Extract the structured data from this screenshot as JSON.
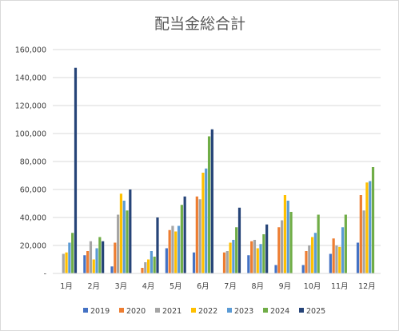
{
  "chart_data": {
    "type": "bar",
    "title": "配当金総合計",
    "xlabel": "",
    "ylabel": "",
    "ylim": [
      0,
      160000
    ],
    "yticks": [
      0,
      20000,
      40000,
      60000,
      80000,
      100000,
      120000,
      140000,
      160000
    ],
    "ytick_labels": [
      "-",
      "20,000",
      "40,000",
      "60,000",
      "80,000",
      "100,000",
      "120,000",
      "140,000",
      "160,000"
    ],
    "grid": true,
    "legend_position": "bottom",
    "categories": [
      "1月",
      "2月",
      "3月",
      "4月",
      "5月",
      "6月",
      "7月",
      "8月",
      "9月",
      "10月",
      "11月",
      "12月"
    ],
    "series": [
      {
        "name": "2019",
        "color": "#4472c4",
        "values": [
          0,
          13000,
          5000,
          0,
          18000,
          15000,
          0,
          13000,
          6000,
          6000,
          14000,
          22000
        ]
      },
      {
        "name": "2020",
        "color": "#ed7d31",
        "values": [
          0,
          16000,
          22000,
          4000,
          31000,
          55000,
          15000,
          23000,
          33000,
          16000,
          25000,
          56000
        ]
      },
      {
        "name": "2021",
        "color": "#a5a5a5",
        "values": [
          14000,
          23000,
          42000,
          8000,
          34000,
          53000,
          16000,
          24000,
          38000,
          20000,
          20000,
          45000
        ]
      },
      {
        "name": "2022",
        "color": "#ffc000",
        "values": [
          15000,
          10000,
          57000,
          10000,
          30000,
          72000,
          22000,
          18000,
          56000,
          26000,
          19000,
          65000
        ]
      },
      {
        "name": "2023",
        "color": "#5b9bd5",
        "values": [
          22000,
          18000,
          52000,
          16000,
          34000,
          75000,
          24000,
          21000,
          52000,
          29000,
          33000,
          66000
        ]
      },
      {
        "name": "2024",
        "color": "#70ad47",
        "values": [
          29000,
          26000,
          45000,
          12000,
          49000,
          98000,
          33000,
          28000,
          44000,
          42000,
          42000,
          76000
        ]
      },
      {
        "name": "2025",
        "color": "#264478",
        "values": [
          147000,
          23000,
          60000,
          40000,
          55000,
          103000,
          47000,
          35000,
          0,
          0,
          0,
          0
        ]
      }
    ]
  }
}
